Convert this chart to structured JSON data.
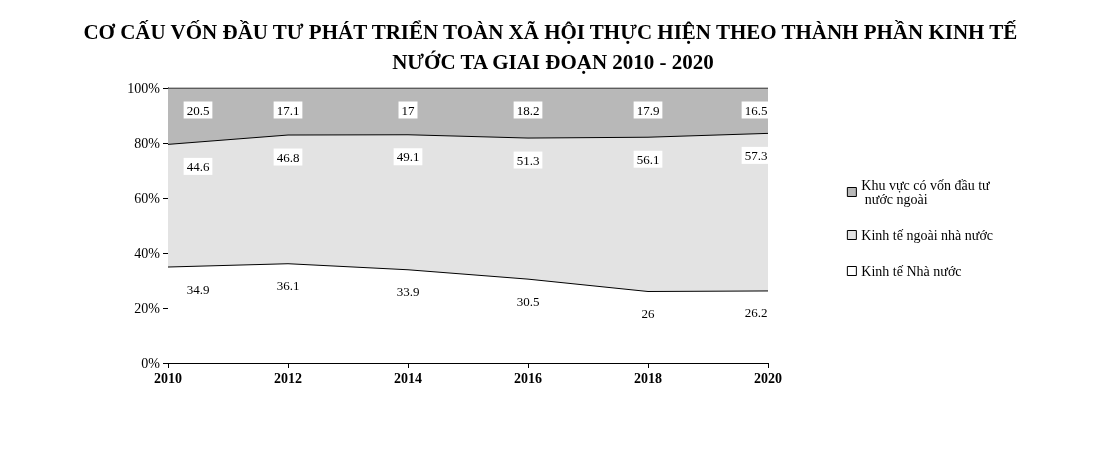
{
  "chart_data": {
    "type": "area",
    "title": "CƠ CẤU VỐN ĐẦU TƯ PHÁT TRIỂN TOÀN XÃ HỘI THỰC HIỆN THEO THÀNH PHẦN KINH TẾ NƯỚC TA GIAI ĐOẠN 2010 - 2020",
    "stacked": true,
    "categories": [
      "2010",
      "2012",
      "2014",
      "2016",
      "2018",
      "2020"
    ],
    "ylim": [
      0,
      100
    ],
    "yticks": [
      {
        "value": 0,
        "label": "0%"
      },
      {
        "value": 20,
        "label": "20%"
      },
      {
        "value": 40,
        "label": "40%"
      },
      {
        "value": 60,
        "label": "60%"
      },
      {
        "value": 80,
        "label": "80%"
      },
      {
        "value": 100,
        "label": "100%"
      }
    ],
    "series": [
      {
        "name": "Kinh tế Nhà nước",
        "color": "#ffffff",
        "values": [
          34.9,
          36.1,
          33.9,
          30.5,
          26,
          26.2
        ]
      },
      {
        "name": "Kinh tế ngoài nhà nước",
        "color": "#e3e3e3",
        "values": [
          44.6,
          46.8,
          49.1,
          51.3,
          56.1,
          57.3
        ]
      },
      {
        "name": "Khu vực có vốn đầu tư nước ngoài",
        "color": "#b8b8b8",
        "values": [
          20.5,
          17.1,
          17,
          18.2,
          17.9,
          16.5
        ]
      }
    ],
    "data_labels": true,
    "legend": "right",
    "grid": false
  }
}
